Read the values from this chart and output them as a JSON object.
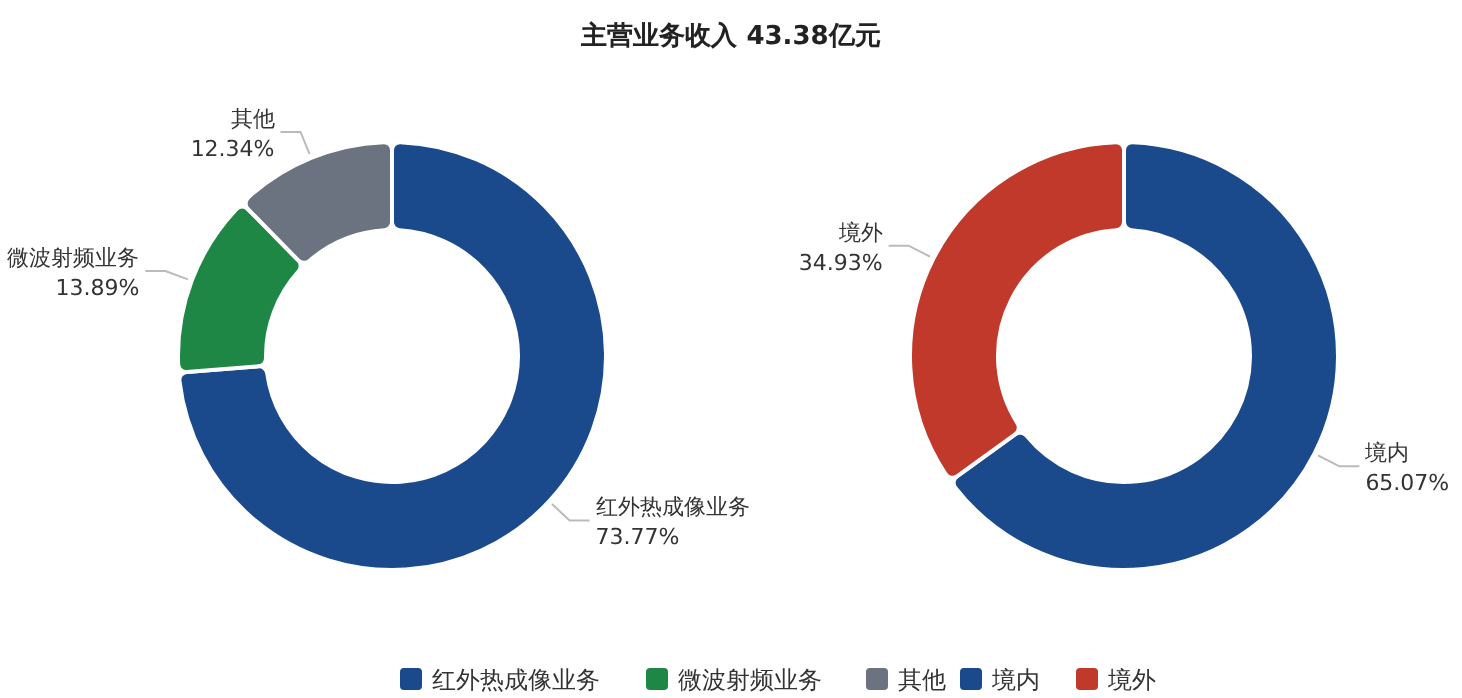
{
  "chart_data": [
    {
      "type": "donut",
      "title": "主营业务收入 43.38亿元",
      "categories": [
        "红外热成像业务",
        "微波射频业务",
        "其他"
      ],
      "values": [
        73.77,
        13.89,
        12.34
      ],
      "value_labels": [
        "73.77%",
        "13.89%",
        "12.34%"
      ],
      "colors": [
        "#1b4a8c",
        "#1f8746",
        "#6b7280"
      ],
      "legend": "bottom"
    },
    {
      "type": "donut",
      "categories": [
        "境内",
        "境外"
      ],
      "values": [
        65.07,
        34.93
      ],
      "value_labels": [
        "65.07%",
        "34.93%"
      ],
      "colors": [
        "#1b4a8c",
        "#c0392b"
      ],
      "legend": "bottom"
    }
  ]
}
